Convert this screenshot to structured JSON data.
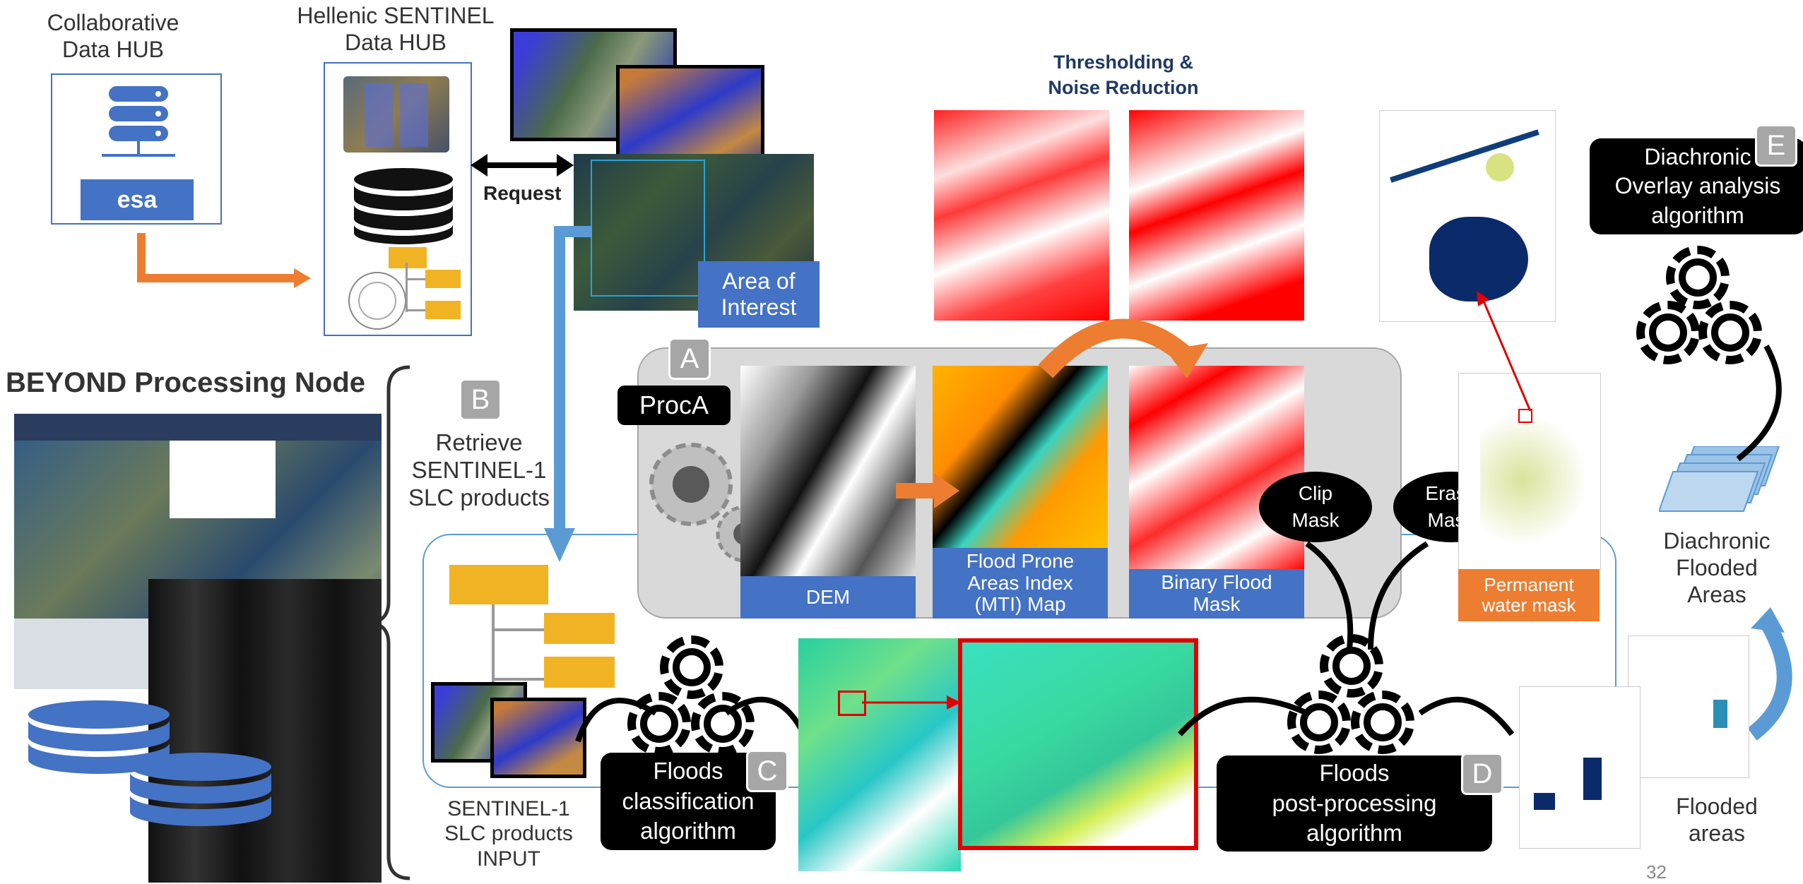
{
  "collab_hub": {
    "line1": "Collaborative",
    "line2": "Data HUB",
    "logo": "esa"
  },
  "hellenic_hub": {
    "line1": "Hellenic SENTINEL",
    "line2": "Data HUB"
  },
  "request_label": "Request",
  "aoi_label": {
    "line1": "Area of",
    "line2": "Interest"
  },
  "thresholding": {
    "line1": "Thresholding &",
    "line2": "Noise Reduction"
  },
  "diachronic_box": {
    "line1": "Diachronic",
    "line2": "Overlay analysis",
    "line3": "algorithm",
    "letter": "E"
  },
  "node_title": "BEYOND Processing Node",
  "retrieve": {
    "letter": "B",
    "line1": "Retrieve",
    "line2": "SENTINEL-1",
    "line3": "SLC products"
  },
  "proca": {
    "letter": "A",
    "label": "ProcA"
  },
  "dem_label": "DEM",
  "mti_label": {
    "line1": "Flood Prone",
    "line2": "Areas Index",
    "line3": "(MTI) Map"
  },
  "binary_label": {
    "line1": "Binary Flood",
    "line2": "Mask"
  },
  "clip_mask": {
    "line1": "Clip",
    "line2": "Mask"
  },
  "erase_mask": {
    "line1": "Erase",
    "line2": "Mask"
  },
  "permanent": {
    "line1": "Permanent",
    "line2": "water mask"
  },
  "diachronic_flooded": {
    "line1": "Diachronic",
    "line2": "Flooded",
    "line3": "Areas"
  },
  "input_label": {
    "line1": "SENTINEL-1",
    "line2": "SLC products",
    "line3": "INPUT"
  },
  "floods_class": {
    "line1": "Floods",
    "line2": "classification",
    "line3": "algorithm",
    "letter": "C"
  },
  "floods_post": {
    "line1": "Floods",
    "line2": "post-processing",
    "line3": "algorithm",
    "letter": "D"
  },
  "flooded_areas": {
    "line1": "Flooded",
    "line2": "areas"
  },
  "page_number": "32",
  "colors": {
    "blue": "#4472c4",
    "orange": "#ed7d31",
    "gray_panel": "#d9d9d9",
    "flood_red": "#ff0000"
  }
}
